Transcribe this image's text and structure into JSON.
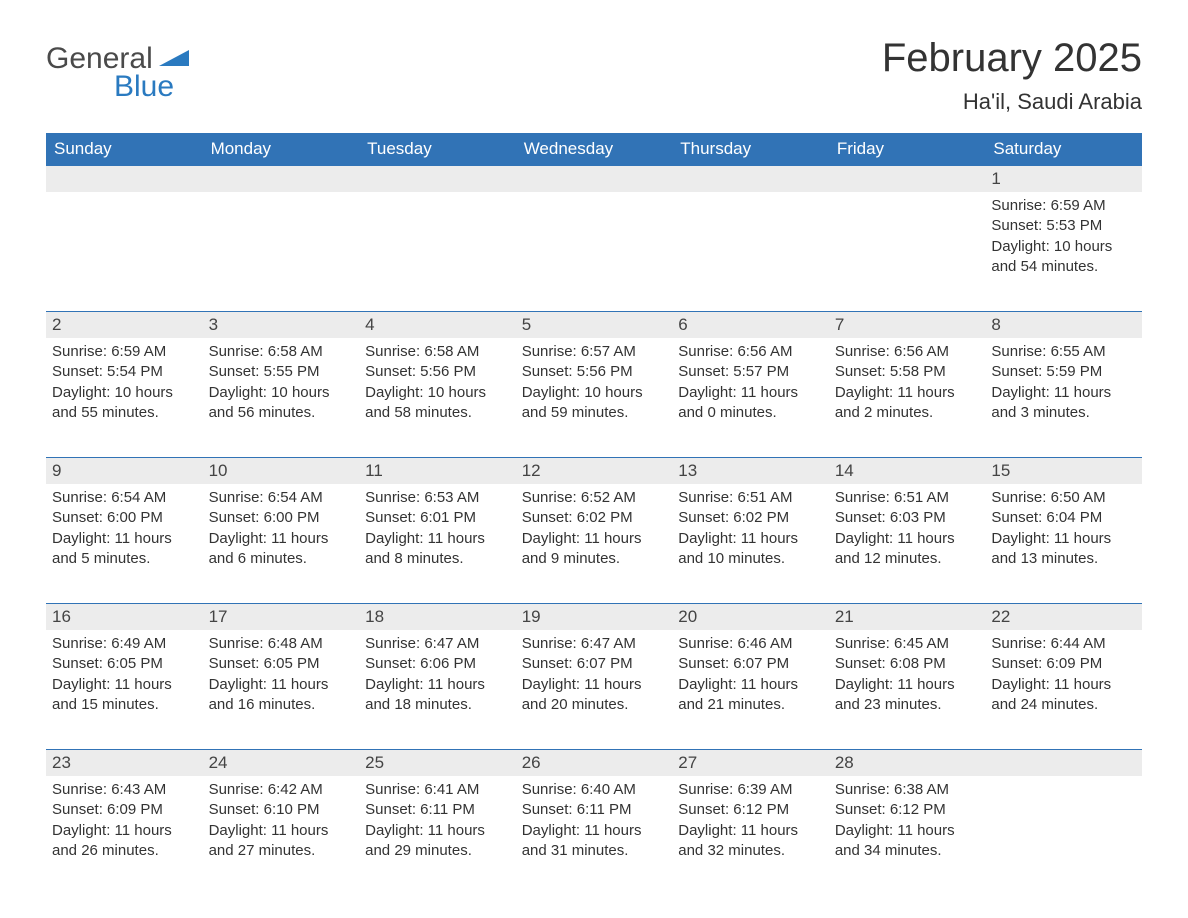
{
  "logo": {
    "text_general": "General",
    "text_blue": "Blue",
    "shape_color": "#2a7ac0"
  },
  "header": {
    "month_title": "February 2025",
    "location": "Ha'il, Saudi Arabia"
  },
  "colors": {
    "header_bg": "#3173b6",
    "header_text": "#ffffff",
    "daynum_bg": "#ececec",
    "week_divider": "#3173b6",
    "body_text": "#333333"
  },
  "typography": {
    "title_fontsize": 40,
    "location_fontsize": 22,
    "header_fontsize": 17,
    "daynum_fontsize": 17,
    "body_fontsize": 15
  },
  "calendar": {
    "columns": [
      "Sunday",
      "Monday",
      "Tuesday",
      "Wednesday",
      "Thursday",
      "Friday",
      "Saturday"
    ],
    "weeks": [
      [
        null,
        null,
        null,
        null,
        null,
        null,
        {
          "day": "1",
          "sunrise": "Sunrise: 6:59 AM",
          "sunset": "Sunset: 5:53 PM",
          "daylight": "Daylight: 10 hours and 54 minutes."
        }
      ],
      [
        {
          "day": "2",
          "sunrise": "Sunrise: 6:59 AM",
          "sunset": "Sunset: 5:54 PM",
          "daylight": "Daylight: 10 hours and 55 minutes."
        },
        {
          "day": "3",
          "sunrise": "Sunrise: 6:58 AM",
          "sunset": "Sunset: 5:55 PM",
          "daylight": "Daylight: 10 hours and 56 minutes."
        },
        {
          "day": "4",
          "sunrise": "Sunrise: 6:58 AM",
          "sunset": "Sunset: 5:56 PM",
          "daylight": "Daylight: 10 hours and 58 minutes."
        },
        {
          "day": "5",
          "sunrise": "Sunrise: 6:57 AM",
          "sunset": "Sunset: 5:56 PM",
          "daylight": "Daylight: 10 hours and 59 minutes."
        },
        {
          "day": "6",
          "sunrise": "Sunrise: 6:56 AM",
          "sunset": "Sunset: 5:57 PM",
          "daylight": "Daylight: 11 hours and 0 minutes."
        },
        {
          "day": "7",
          "sunrise": "Sunrise: 6:56 AM",
          "sunset": "Sunset: 5:58 PM",
          "daylight": "Daylight: 11 hours and 2 minutes."
        },
        {
          "day": "8",
          "sunrise": "Sunrise: 6:55 AM",
          "sunset": "Sunset: 5:59 PM",
          "daylight": "Daylight: 11 hours and 3 minutes."
        }
      ],
      [
        {
          "day": "9",
          "sunrise": "Sunrise: 6:54 AM",
          "sunset": "Sunset: 6:00 PM",
          "daylight": "Daylight: 11 hours and 5 minutes."
        },
        {
          "day": "10",
          "sunrise": "Sunrise: 6:54 AM",
          "sunset": "Sunset: 6:00 PM",
          "daylight": "Daylight: 11 hours and 6 minutes."
        },
        {
          "day": "11",
          "sunrise": "Sunrise: 6:53 AM",
          "sunset": "Sunset: 6:01 PM",
          "daylight": "Daylight: 11 hours and 8 minutes."
        },
        {
          "day": "12",
          "sunrise": "Sunrise: 6:52 AM",
          "sunset": "Sunset: 6:02 PM",
          "daylight": "Daylight: 11 hours and 9 minutes."
        },
        {
          "day": "13",
          "sunrise": "Sunrise: 6:51 AM",
          "sunset": "Sunset: 6:02 PM",
          "daylight": "Daylight: 11 hours and 10 minutes."
        },
        {
          "day": "14",
          "sunrise": "Sunrise: 6:51 AM",
          "sunset": "Sunset: 6:03 PM",
          "daylight": "Daylight: 11 hours and 12 minutes."
        },
        {
          "day": "15",
          "sunrise": "Sunrise: 6:50 AM",
          "sunset": "Sunset: 6:04 PM",
          "daylight": "Daylight: 11 hours and 13 minutes."
        }
      ],
      [
        {
          "day": "16",
          "sunrise": "Sunrise: 6:49 AM",
          "sunset": "Sunset: 6:05 PM",
          "daylight": "Daylight: 11 hours and 15 minutes."
        },
        {
          "day": "17",
          "sunrise": "Sunrise: 6:48 AM",
          "sunset": "Sunset: 6:05 PM",
          "daylight": "Daylight: 11 hours and 16 minutes."
        },
        {
          "day": "18",
          "sunrise": "Sunrise: 6:47 AM",
          "sunset": "Sunset: 6:06 PM",
          "daylight": "Daylight: 11 hours and 18 minutes."
        },
        {
          "day": "19",
          "sunrise": "Sunrise: 6:47 AM",
          "sunset": "Sunset: 6:07 PM",
          "daylight": "Daylight: 11 hours and 20 minutes."
        },
        {
          "day": "20",
          "sunrise": "Sunrise: 6:46 AM",
          "sunset": "Sunset: 6:07 PM",
          "daylight": "Daylight: 11 hours and 21 minutes."
        },
        {
          "day": "21",
          "sunrise": "Sunrise: 6:45 AM",
          "sunset": "Sunset: 6:08 PM",
          "daylight": "Daylight: 11 hours and 23 minutes."
        },
        {
          "day": "22",
          "sunrise": "Sunrise: 6:44 AM",
          "sunset": "Sunset: 6:09 PM",
          "daylight": "Daylight: 11 hours and 24 minutes."
        }
      ],
      [
        {
          "day": "23",
          "sunrise": "Sunrise: 6:43 AM",
          "sunset": "Sunset: 6:09 PM",
          "daylight": "Daylight: 11 hours and 26 minutes."
        },
        {
          "day": "24",
          "sunrise": "Sunrise: 6:42 AM",
          "sunset": "Sunset: 6:10 PM",
          "daylight": "Daylight: 11 hours and 27 minutes."
        },
        {
          "day": "25",
          "sunrise": "Sunrise: 6:41 AM",
          "sunset": "Sunset: 6:11 PM",
          "daylight": "Daylight: 11 hours and 29 minutes."
        },
        {
          "day": "26",
          "sunrise": "Sunrise: 6:40 AM",
          "sunset": "Sunset: 6:11 PM",
          "daylight": "Daylight: 11 hours and 31 minutes."
        },
        {
          "day": "27",
          "sunrise": "Sunrise: 6:39 AM",
          "sunset": "Sunset: 6:12 PM",
          "daylight": "Daylight: 11 hours and 32 minutes."
        },
        {
          "day": "28",
          "sunrise": "Sunrise: 6:38 AM",
          "sunset": "Sunset: 6:12 PM",
          "daylight": "Daylight: 11 hours and 34 minutes."
        },
        null
      ]
    ]
  }
}
